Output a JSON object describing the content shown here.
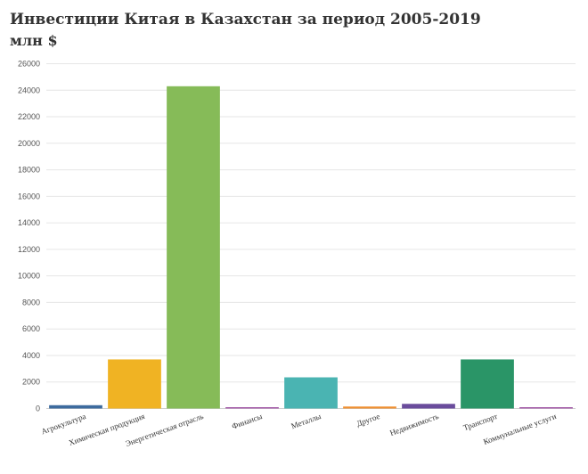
{
  "header": {
    "title": "Инвестиции Китая в Казахстан за период 2005-2019",
    "subtitle": "млн $"
  },
  "chart_data": {
    "type": "bar",
    "title": "Инвестиции Китая в Казахстан за период 2005-2019",
    "ylabel": "млн $",
    "xlabel": "",
    "ylim": [
      0,
      26000
    ],
    "yticks": [
      0,
      2000,
      4000,
      6000,
      8000,
      10000,
      12000,
      14000,
      16000,
      18000,
      20000,
      22000,
      24000,
      26000
    ],
    "grid": true,
    "categories": [
      "Агрокультура",
      "Химическая продукция",
      "Энергетическая отрасль",
      "Финансы",
      "Металлы",
      "Другое",
      "Недвижимость",
      "Транспорт",
      "Коммунальные услуги"
    ],
    "values": [
      250,
      3700,
      24300,
      80,
      2350,
      150,
      350,
      3700,
      70
    ],
    "colors": [
      "#3d6b9e",
      "#f0b323",
      "#86bb58",
      "#a35aa8",
      "#4ab4b2",
      "#ef8f2f",
      "#6a4c9c",
      "#2a9567",
      "#a35aa8"
    ]
  }
}
